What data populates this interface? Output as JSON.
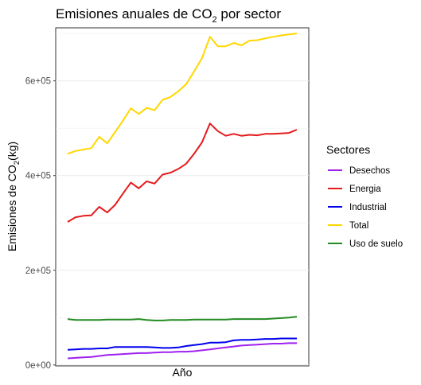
{
  "chart_data": {
    "type": "line",
    "title": {
      "main": "Emisiones anuales de CO",
      "sub": "2",
      "rest": " por sector"
    },
    "xlabel": "Año",
    "ylabel": {
      "main": "Emisiones de CO",
      "sub": "2",
      "rest": "(kg)"
    },
    "ylim": [
      -2000,
      712000
    ],
    "yticks": [
      0,
      200000,
      400000,
      600000
    ],
    "ytick_labels": [
      "0e+00",
      "2e+05",
      "4e+05",
      "6e+05"
    ],
    "grid": true,
    "legend": {
      "title": "Sectores",
      "position": "right"
    },
    "x": [
      1,
      2,
      3,
      4,
      5,
      6,
      7,
      8,
      9,
      10,
      11,
      12,
      13,
      14,
      15,
      16,
      17,
      18,
      19,
      20,
      21,
      22,
      23,
      24,
      25,
      26,
      27,
      28,
      29,
      30
    ],
    "series": [
      {
        "name": "Desechos",
        "color": "#A020F0",
        "values": [
          14000,
          15000,
          16000,
          17000,
          19000,
          21000,
          22000,
          23000,
          24000,
          25000,
          25000,
          26000,
          27000,
          27000,
          28000,
          28000,
          29000,
          31000,
          33000,
          35000,
          37000,
          39000,
          41000,
          42000,
          43000,
          44000,
          45000,
          45000,
          46000,
          46000
        ]
      },
      {
        "name": "Energia",
        "color": "#E41A1C",
        "values": [
          302000,
          312000,
          315000,
          316000,
          334000,
          322000,
          338000,
          362000,
          385000,
          373000,
          388000,
          383000,
          402000,
          406000,
          414000,
          425000,
          446000,
          470000,
          510000,
          494000,
          484000,
          488000,
          484000,
          486000,
          485000,
          488000,
          488000,
          489000,
          490000,
          497000
        ]
      },
      {
        "name": "Industrial",
        "color": "#0000EE",
        "values": [
          32000,
          33000,
          34000,
          34000,
          35000,
          35000,
          38000,
          38000,
          38000,
          38000,
          38000,
          37000,
          36000,
          36000,
          37000,
          40000,
          42000,
          44000,
          47000,
          47000,
          48000,
          52000,
          53000,
          53000,
          54000,
          55000,
          55000,
          56000,
          56000,
          56000
        ]
      },
      {
        "name": "Total",
        "color": "#FFD700",
        "values": [
          446000,
          452000,
          455000,
          458000,
          482000,
          468000,
          492000,
          516000,
          542000,
          530000,
          543000,
          538000,
          560000,
          566000,
          578000,
          593000,
          620000,
          648000,
          693000,
          673000,
          673000,
          680000,
          675000,
          685000,
          686000,
          690000,
          693000,
          696000,
          698000,
          700000
        ]
      },
      {
        "name": "Uso de suelo",
        "color": "#228B22",
        "values": [
          97000,
          95000,
          95000,
          95000,
          95000,
          96000,
          96000,
          96000,
          96000,
          97000,
          95000,
          94000,
          94000,
          95000,
          95000,
          95000,
          96000,
          96000,
          96000,
          96000,
          96000,
          97000,
          97000,
          97000,
          97000,
          97000,
          98000,
          99000,
          100000,
          102000
        ]
      }
    ]
  }
}
